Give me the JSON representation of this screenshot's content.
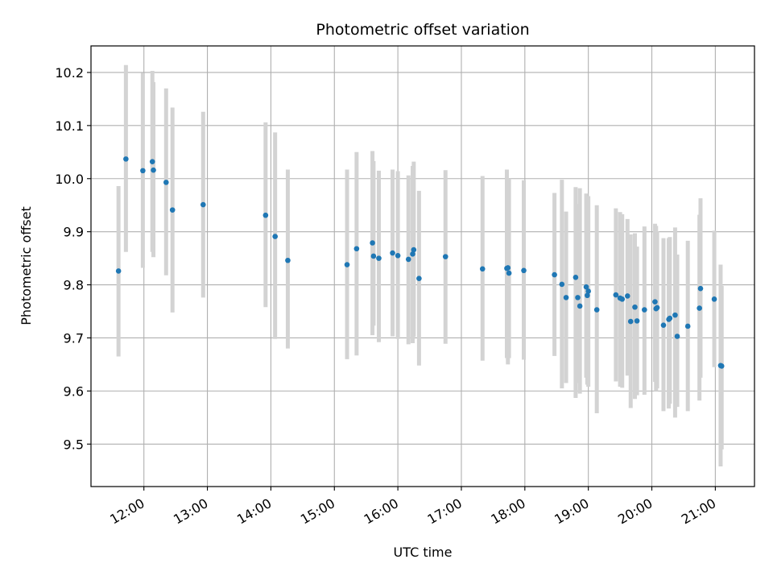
{
  "chart_data": {
    "type": "scatter",
    "title": "Photometric offset variation",
    "xlabel": "UTC time",
    "ylabel": "Photometric offset",
    "x_unit": "UTC hh:mm",
    "xlim": [
      "11:10",
      "21:37"
    ],
    "ylim": [
      9.42,
      10.25
    ],
    "x_ticks": [
      "12:00",
      "13:00",
      "14:00",
      "15:00",
      "16:00",
      "17:00",
      "18:00",
      "19:00",
      "20:00",
      "21:00"
    ],
    "y_ticks": [
      "9.5",
      "9.6",
      "9.7",
      "9.8",
      "9.9",
      "10.0",
      "10.1",
      "10.2"
    ],
    "grid": true,
    "legend": false,
    "colors": {
      "point": "#1f77b4",
      "errorbar": "#d3d3d3",
      "grid": "#b0b0b0",
      "axis": "#000000"
    },
    "series": [
      {
        "x": [
          "11:36",
          "11:43",
          "11:59",
          "12:08",
          "12:09",
          "12:21",
          "12:27",
          "12:56",
          "13:55",
          "14:04",
          "14:16",
          "15:12",
          "15:21",
          "15:36",
          "15:37",
          "15:42",
          "15:55",
          "16:00",
          "16:10",
          "16:14",
          "16:15",
          "16:20",
          "16:45",
          "17:20",
          "17:43",
          "17:44",
          "17:45",
          "17:59",
          "18:28",
          "18:35",
          "18:39",
          "18:48",
          "18:50",
          "18:52",
          "18:58",
          "18:59",
          "19:00",
          "19:08",
          "19:26",
          "19:30",
          "19:32",
          "19:37",
          "19:40",
          "19:44",
          "19:46",
          "19:53",
          "20:03",
          "20:04",
          "20:05",
          "20:11",
          "20:16",
          "20:17",
          "20:22",
          "20:24",
          "20:34",
          "20:45",
          "20:46",
          "20:59",
          "21:05",
          "21:06"
        ],
        "y": [
          9.826,
          10.037,
          10.015,
          10.032,
          10.016,
          9.993,
          9.941,
          9.951,
          9.931,
          9.891,
          9.846,
          9.838,
          9.868,
          9.879,
          9.854,
          9.85,
          9.86,
          9.855,
          9.848,
          9.858,
          9.866,
          9.812,
          9.853,
          9.83,
          9.831,
          9.832,
          9.822,
          9.827,
          9.819,
          9.801,
          9.776,
          9.814,
          9.776,
          9.76,
          9.796,
          9.78,
          9.788,
          9.753,
          9.781,
          9.775,
          9.773,
          9.779,
          9.731,
          9.758,
          9.732,
          9.753,
          9.768,
          9.755,
          9.757,
          9.724,
          9.735,
          9.737,
          9.743,
          9.703,
          9.722,
          9.756,
          9.793,
          9.773,
          9.648,
          9.647
        ],
        "y_low": [
          9.665,
          9.862,
          9.832,
          9.862,
          9.852,
          9.818,
          9.748,
          9.776,
          9.758,
          9.698,
          9.68,
          9.66,
          9.667,
          9.705,
          9.723,
          9.692,
          9.703,
          9.698,
          9.688,
          9.69,
          9.702,
          9.648,
          9.689,
          9.657,
          9.662,
          9.65,
          9.662,
          9.659,
          9.666,
          9.605,
          9.615,
          9.587,
          9.615,
          9.595,
          9.625,
          9.612,
          9.608,
          9.558,
          9.618,
          9.608,
          9.606,
          9.629,
          9.568,
          9.585,
          9.592,
          9.593,
          9.617,
          9.6,
          9.605,
          9.562,
          9.567,
          9.576,
          9.55,
          9.57,
          9.562,
          9.582,
          9.625,
          9.645,
          9.458,
          9.49
        ],
        "y_high": [
          9.986,
          10.214,
          10.199,
          10.203,
          10.182,
          10.17,
          10.134,
          10.126,
          10.106,
          10.087,
          10.017,
          10.017,
          10.05,
          10.052,
          10.033,
          10.015,
          10.017,
          10.014,
          10.006,
          10.024,
          10.032,
          9.977,
          10.016,
          10.005,
          10.017,
          9.977,
          10.0,
          9.997,
          9.973,
          9.998,
          9.938,
          9.984,
          9.952,
          9.982,
          9.972,
          9.955,
          9.967,
          9.95,
          9.944,
          9.937,
          9.933,
          9.924,
          9.895,
          9.897,
          9.872,
          9.91,
          9.915,
          9.911,
          9.901,
          9.888,
          9.888,
          9.89,
          9.908,
          9.857,
          9.883,
          9.932,
          9.963,
          9.902,
          9.838,
          9.798
        ]
      }
    ]
  }
}
